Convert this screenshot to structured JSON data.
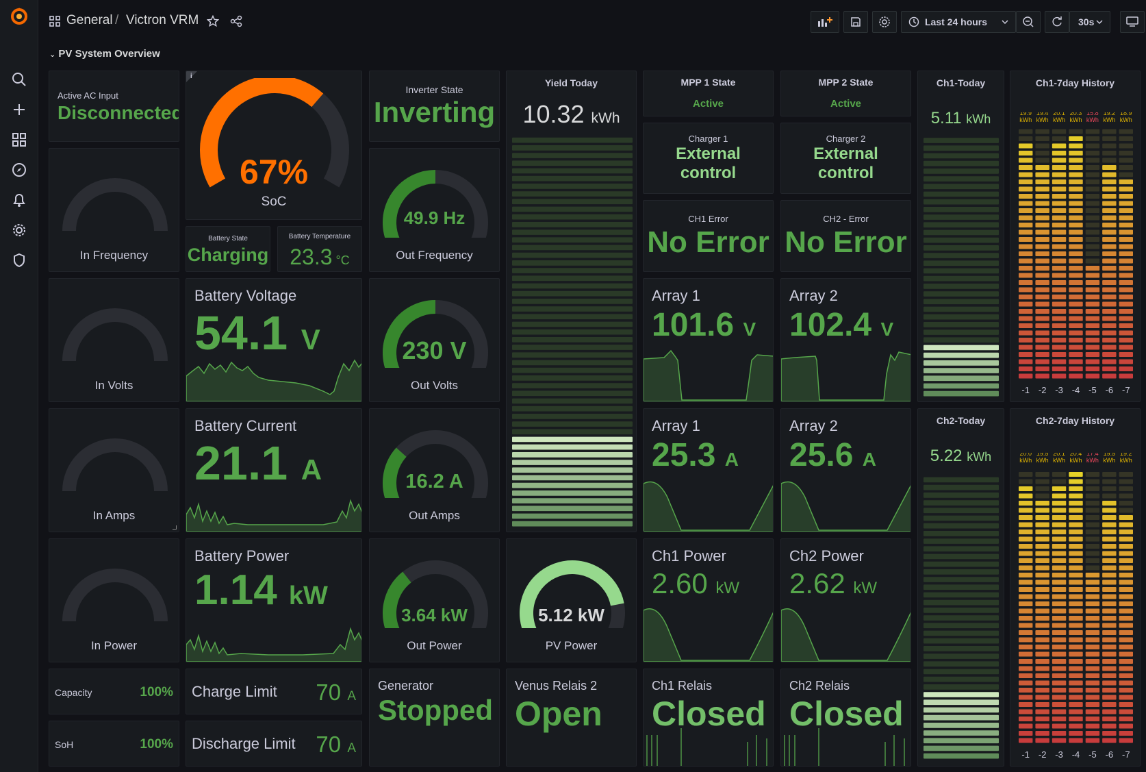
{
  "breadcrumb": {
    "folder": "General",
    "separator": "/",
    "dashboard": "Victron VRM"
  },
  "toolbar": {
    "time_range": "Last 24 hours",
    "refresh_interval": "30s"
  },
  "row": {
    "title": "PV System Overview"
  },
  "icons": [
    "grafana-logo-icon",
    "search-icon",
    "plus-icon",
    "dashboards-icon",
    "explore-icon",
    "alerting-icon",
    "gear-icon",
    "shield-icon",
    "apps-icon",
    "star-icon",
    "share-icon",
    "add-panel-icon",
    "save-icon",
    "settings-icon",
    "clock-icon",
    "zoom-out-icon",
    "refresh-icon",
    "tv-mode-icon"
  ],
  "colors": {
    "bg": "#111217",
    "panel": "#181b1f",
    "green": "#56a64b",
    "light_green": "#73bf69",
    "orange": "#ff7000",
    "gauge_track": "#2b2d33"
  },
  "panels": {
    "active_ac_input": {
      "title": "Active AC Input",
      "value": "Disconnected"
    },
    "soc": {
      "value": "67%",
      "label": "SoC",
      "percent": 67,
      "info": "i"
    },
    "inverter_state": {
      "title": "Inverter State",
      "value": "Inverting"
    },
    "yield_today": {
      "title": "Yield Today",
      "value": "10.32",
      "unit": "kWh",
      "fill": 0.23
    },
    "mpp1_state": {
      "title": "MPP 1 State",
      "value": "Active"
    },
    "mpp2_state": {
      "title": "MPP 2 State",
      "value": "Active"
    },
    "ch1_today": {
      "title": "Ch1-Today",
      "value": "5.11",
      "unit": "kWh",
      "fill": 0.2
    },
    "ch1_7day": {
      "title": "Ch1-7day History",
      "days": [
        "-1",
        "-2",
        "-3",
        "-4",
        "-5",
        "-6",
        "-7"
      ],
      "labels": [
        "19.9",
        "19.4",
        "20.1",
        "20.3",
        "15.8",
        "19.2",
        "18.9"
      ],
      "unit": "kWh",
      "values": [
        19.9,
        19.4,
        20.1,
        20.3,
        15.8,
        19.2,
        18.9
      ]
    },
    "in_frequency": {
      "label": "In Frequency"
    },
    "battery_state": {
      "title": "Battery State",
      "value": "Charging"
    },
    "battery_temperature": {
      "title": "Battery Temperature",
      "value": "23.3",
      "unit": "°C"
    },
    "out_frequency": {
      "value": "49.9 Hz",
      "label": "Out Frequency",
      "fraction": 0.5
    },
    "charger1": {
      "title": "Charger 1",
      "line1": "External",
      "line2": "control"
    },
    "charger2": {
      "title": "Charger 2",
      "line1": "External",
      "line2": "control"
    },
    "ch1_error": {
      "title": "CH1 Error",
      "value": "No Error"
    },
    "ch2_error": {
      "title": "CH2 - Error",
      "value": "No Error"
    },
    "in_volts": {
      "label": "In Volts"
    },
    "battery_voltage": {
      "title": "Battery Voltage",
      "value": "54.1",
      "unit": "V"
    },
    "out_volts": {
      "value": "230 V",
      "label": "Out Volts",
      "fraction": 0.5
    },
    "array1_voltage": {
      "title": "Array 1",
      "value": "101.6",
      "unit": "V"
    },
    "array2_voltage": {
      "title": "Array 2",
      "value": "102.4",
      "unit": "V"
    },
    "in_amps": {
      "label": "In Amps"
    },
    "battery_current": {
      "title": "Battery Current",
      "value": "21.1",
      "unit": "A"
    },
    "out_amps": {
      "value": "16.2 A",
      "label": "Out Amps",
      "fraction": 0.3
    },
    "array1_current": {
      "title": "Array 1",
      "value": "25.3",
      "unit": "A"
    },
    "array2_current": {
      "title": "Array 2",
      "value": "25.6",
      "unit": "A"
    },
    "ch2_today": {
      "title": "Ch2-Today",
      "value": "5.22",
      "unit": "kWh",
      "fill": 0.23
    },
    "ch2_7day": {
      "title": "Ch2-7day History",
      "days": [
        "-1",
        "-2",
        "-3",
        "-4",
        "-5",
        "-6",
        "-7"
      ],
      "labels": [
        "20.0",
        "19.5",
        "20.1",
        "20.4",
        "17.4",
        "19.5",
        "19.2"
      ],
      "unit": "kWh",
      "values": [
        20.0,
        19.5,
        20.1,
        20.4,
        17.4,
        19.5,
        19.2
      ]
    },
    "in_power": {
      "label": "In Power"
    },
    "battery_power": {
      "title": "Battery Power",
      "value": "1.14",
      "unit": "kW"
    },
    "out_power": {
      "value": "3.64 kW",
      "label": "Out Power",
      "fraction": 0.34
    },
    "pv_power": {
      "value": "5.12 kW",
      "label": "PV Power",
      "fraction": 0.83
    },
    "ch1_power": {
      "title": "Ch1 Power",
      "value": "2.60",
      "unit": "kW"
    },
    "ch2_power": {
      "title": "Ch2 Power",
      "value": "2.62",
      "unit": "kW"
    },
    "capacity": {
      "title": "Capacity",
      "value": "100%"
    },
    "soh": {
      "title": "SoH",
      "value": "100%"
    },
    "charge_limit": {
      "title": "Charge Limit",
      "value": "70",
      "unit": "A"
    },
    "discharge_limit": {
      "title": "Discharge Limit",
      "value": "70",
      "unit": "A"
    },
    "generator": {
      "title": "Generator",
      "value": "Stopped"
    },
    "venus_relais2": {
      "title": "Venus Relais 2",
      "value": "Open"
    },
    "ch1_relais": {
      "title": "Ch1 Relais",
      "value": "Closed"
    },
    "ch2_relais": {
      "title": "Ch2 Relais",
      "value": "Closed"
    }
  }
}
